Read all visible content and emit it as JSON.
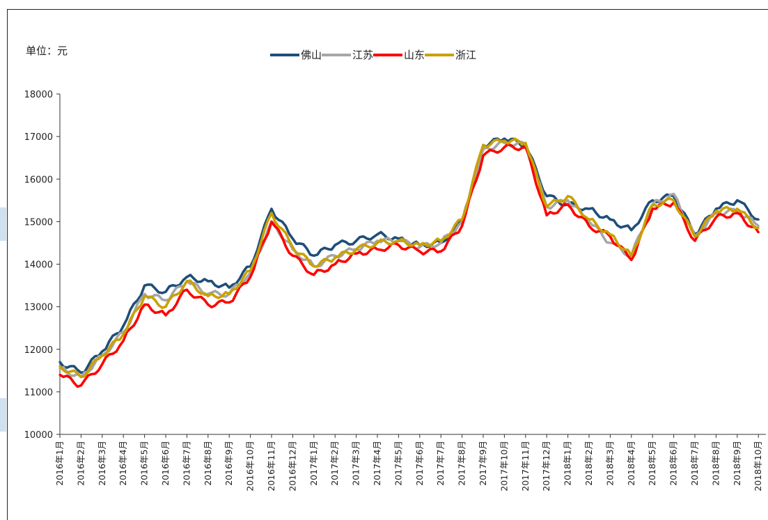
{
  "unit_label": "单位：元",
  "chart_data": {
    "type": "line",
    "title": "",
    "xlabel": "",
    "ylabel": "单位：元",
    "ylim": [
      10000,
      18000
    ],
    "yticks": [
      10000,
      11000,
      12000,
      13000,
      14000,
      15000,
      16000,
      17000,
      18000
    ],
    "grid": false,
    "legend_position": "top-center",
    "categories": [
      "2016年1月",
      "2016年2月",
      "2016年3月",
      "2016年4月",
      "2016年5月",
      "2016年6月",
      "2016年7月",
      "2016年8月",
      "2016年9月",
      "2016年10月",
      "2016年11月",
      "2016年12月",
      "2017年1月",
      "2017年2月",
      "2017年3月",
      "2017年4月",
      "2017年5月",
      "2017年6月",
      "2017年7月",
      "2017年8月",
      "2017年9月",
      "2017年10月",
      "2017年11月",
      "2017年12月",
      "2018年1月",
      "2018年2月",
      "2018年3月",
      "2018年4月",
      "2018年5月",
      "2018年6月",
      "2018年7月",
      "2018年8月",
      "2018年9月",
      "2018年10月"
    ],
    "series": [
      {
        "name": "佛山",
        "color": "#1f4e79",
        "values": [
          11700,
          11450,
          11950,
          12550,
          13500,
          13350,
          13700,
          13600,
          13450,
          13950,
          15300,
          14600,
          14200,
          14450,
          14550,
          14700,
          14600,
          14450,
          14500,
          15000,
          16800,
          16950,
          16800,
          15600,
          15400,
          15300,
          15050,
          14800,
          15500,
          15600,
          14700,
          15300,
          15500,
          15050
        ]
      },
      {
        "name": "江苏",
        "color": "#a6a6a6",
        "values": [
          11550,
          11350,
          11850,
          12400,
          13300,
          13150,
          13600,
          13300,
          13300,
          13800,
          15000,
          14350,
          13950,
          14200,
          14350,
          14550,
          14550,
          14400,
          14500,
          15000,
          16700,
          16850,
          16800,
          15350,
          15500,
          15000,
          14500,
          14200,
          15400,
          15650,
          14650,
          15200,
          15250,
          14900
        ]
      },
      {
        "name": "山东",
        "color": "#ff0000",
        "values": [
          11400,
          11150,
          11650,
          12200,
          13050,
          12800,
          13400,
          13050,
          13100,
          13700,
          15000,
          14200,
          13750,
          14000,
          14250,
          14350,
          14450,
          14300,
          14300,
          14900,
          16550,
          16750,
          16750,
          15150,
          15400,
          14900,
          14650,
          14100,
          15300,
          15450,
          14550,
          15100,
          15200,
          14750
        ]
      },
      {
        "name": "浙江",
        "color": "#c9a100",
        "values": [
          11600,
          11350,
          11850,
          12350,
          13250,
          13000,
          13600,
          13250,
          13300,
          13850,
          15200,
          14400,
          13950,
          14150,
          14350,
          14500,
          14550,
          14450,
          14550,
          15050,
          16800,
          16900,
          16850,
          15350,
          15600,
          15050,
          14700,
          14200,
          15400,
          15500,
          14650,
          15250,
          15300,
          14850
        ]
      }
    ]
  }
}
